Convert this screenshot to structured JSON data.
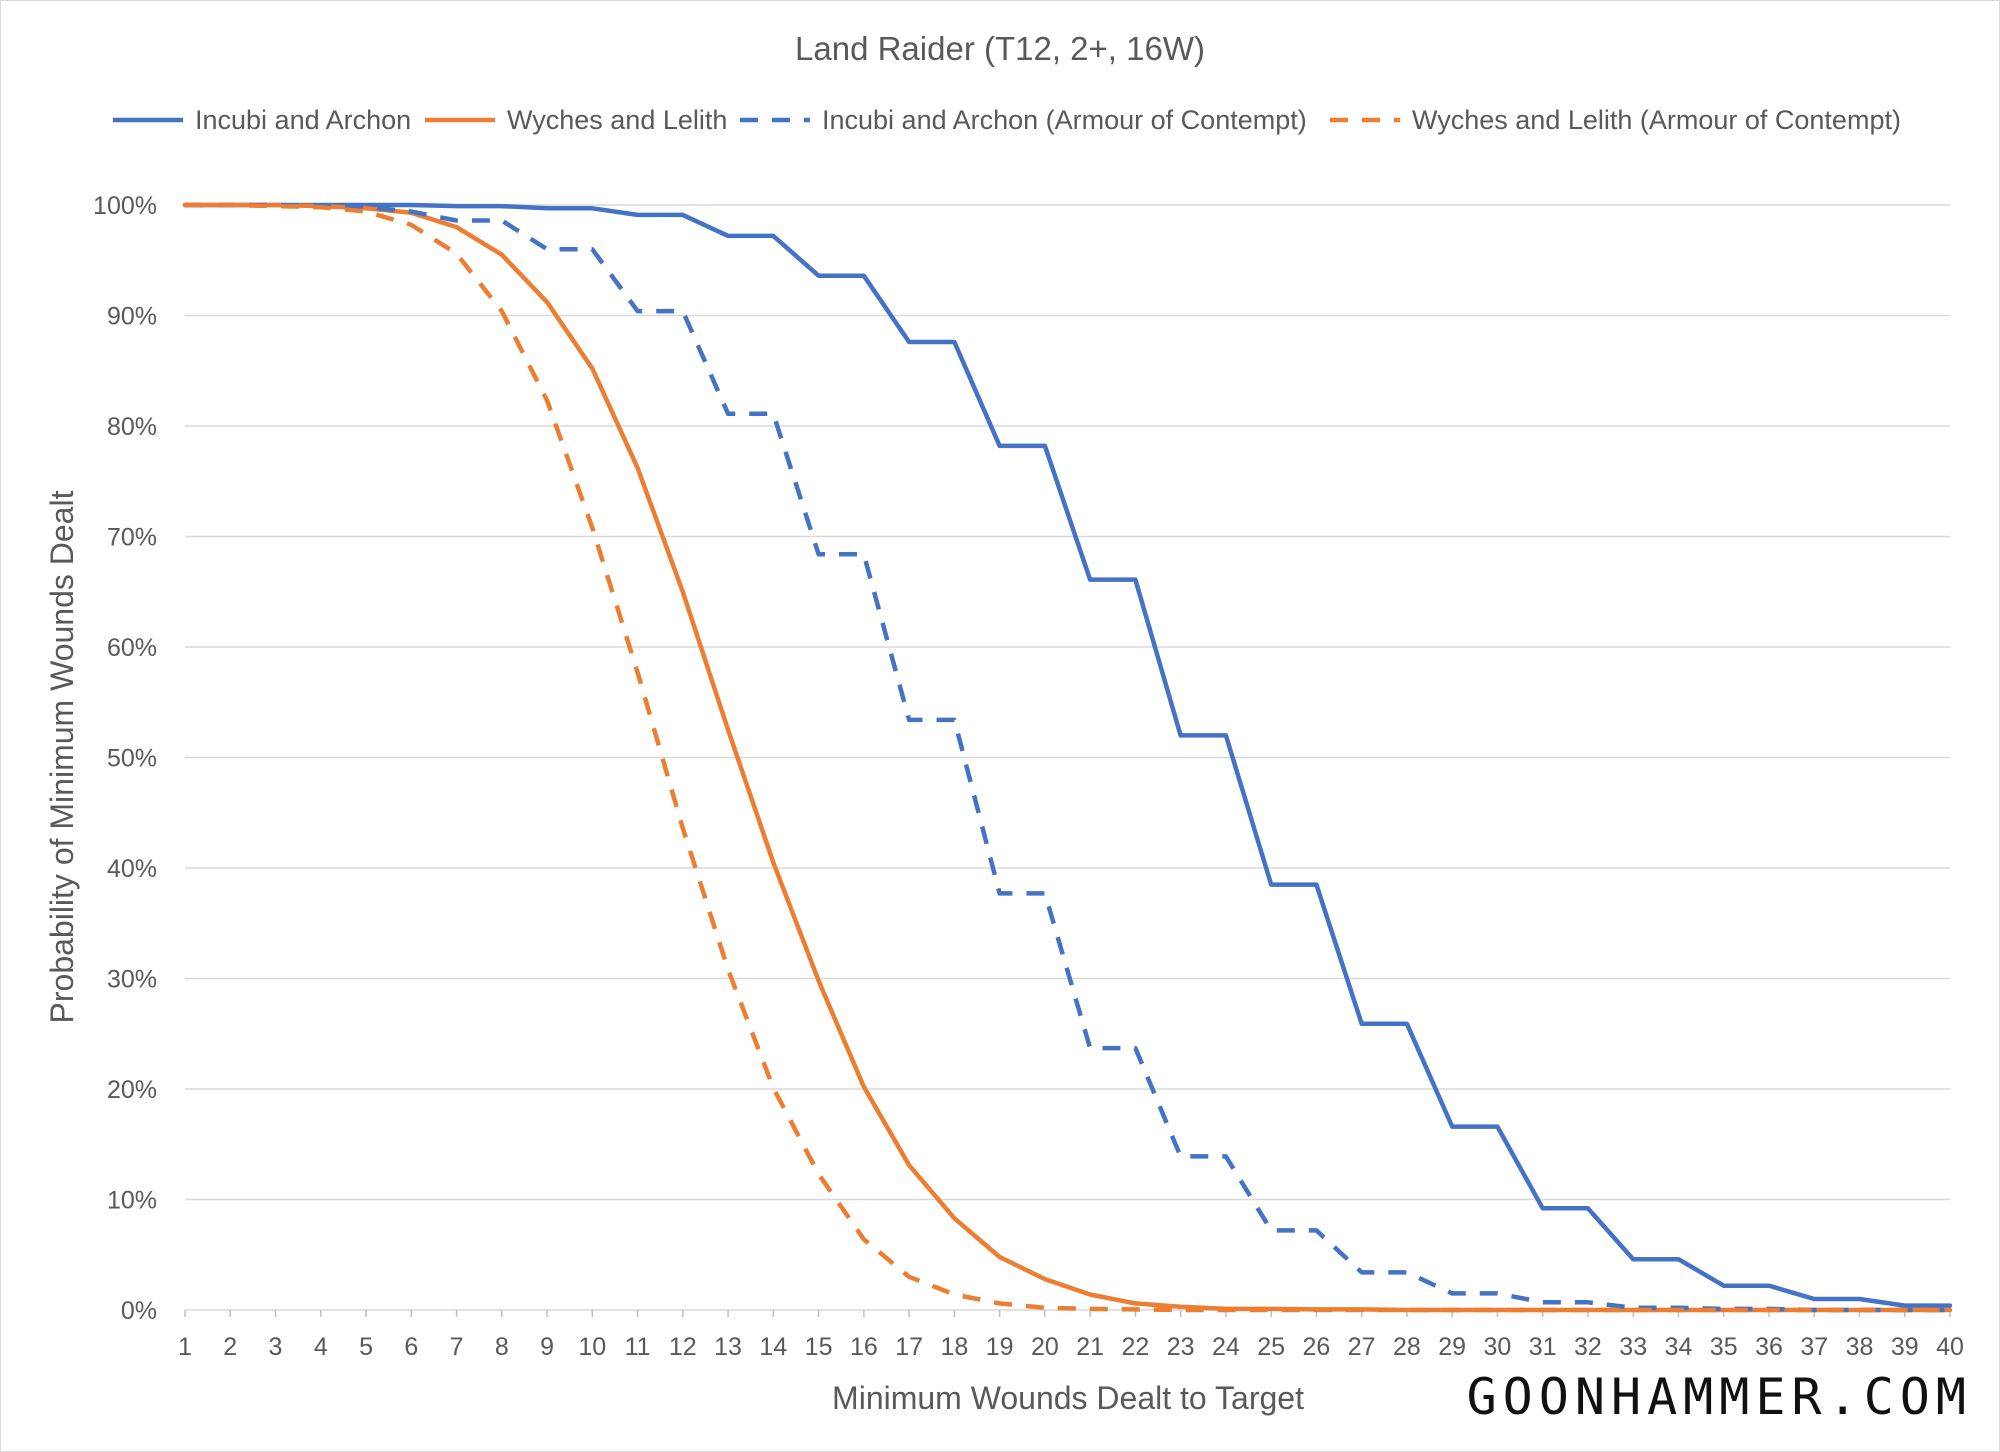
{
  "chart_data": {
    "type": "line",
    "title": "Land Raider (T12, 2+, 16W)",
    "xlabel": "Minimum Wounds Dealt to Target",
    "ylabel": "Probability of Minimum Wounds Dealt",
    "x": [
      1,
      2,
      3,
      4,
      5,
      6,
      7,
      8,
      9,
      10,
      11,
      12,
      13,
      14,
      15,
      16,
      17,
      18,
      19,
      20,
      21,
      22,
      23,
      24,
      25,
      26,
      27,
      28,
      29,
      30,
      31,
      32,
      33,
      34,
      35,
      36,
      37,
      38,
      39,
      40
    ],
    "xlim": [
      1,
      40
    ],
    "ylim": [
      0,
      100
    ],
    "y_ticks": [
      "0%",
      "10%",
      "20%",
      "30%",
      "40%",
      "50%",
      "60%",
      "70%",
      "80%",
      "90%",
      "100%"
    ],
    "x_ticks": [
      "1",
      "2",
      "3",
      "4",
      "5",
      "6",
      "7",
      "8",
      "9",
      "10",
      "11",
      "12",
      "13",
      "14",
      "15",
      "16",
      "17",
      "18",
      "19",
      "20",
      "21",
      "22",
      "23",
      "24",
      "25",
      "26",
      "27",
      "28",
      "29",
      "30",
      "31",
      "32",
      "33",
      "34",
      "35",
      "36",
      "37",
      "38",
      "39",
      "40"
    ],
    "grid": "horizontal",
    "legend_position": "top",
    "series": [
      {
        "name": "Incubi and Archon",
        "color": "#4472c4",
        "style": "solid",
        "values": [
          100,
          100,
          100,
          100,
          100,
          100,
          99.9,
          99.9,
          99.7,
          99.7,
          99.1,
          99.1,
          97.2,
          97.2,
          93.6,
          93.6,
          87.6,
          87.6,
          78.2,
          78.2,
          66.1,
          66.1,
          52.0,
          52.0,
          38.5,
          38.5,
          25.9,
          25.9,
          16.6,
          16.6,
          9.2,
          9.2,
          4.6,
          4.6,
          2.2,
          2.2,
          1.0,
          1.0,
          0.4,
          0.4
        ]
      },
      {
        "name": "Wyches and Lelith",
        "color": "#ed7d31",
        "style": "solid",
        "values": [
          100,
          100,
          100,
          99.9,
          99.7,
          99.3,
          98.0,
          95.5,
          91.2,
          85.2,
          76.2,
          65.0,
          52.5,
          40.5,
          29.8,
          20.2,
          13.1,
          8.3,
          4.8,
          2.8,
          1.4,
          0.6,
          0.3,
          0.1,
          0.1,
          0.05,
          0.05,
          0,
          0,
          0,
          0,
          0,
          0,
          0,
          0,
          0,
          0,
          0,
          0,
          0
        ]
      },
      {
        "name": "Incubi and Archon (Armour of Contempt)",
        "color": "#4472c4",
        "style": "dashed",
        "values": [
          100,
          100,
          100,
          99.9,
          99.8,
          99.4,
          98.6,
          98.6,
          96.0,
          96.0,
          90.4,
          90.4,
          81.1,
          81.1,
          68.4,
          68.4,
          53.4,
          53.4,
          37.7,
          37.7,
          23.7,
          23.7,
          13.9,
          13.9,
          7.2,
          7.2,
          3.4,
          3.4,
          1.5,
          1.5,
          0.7,
          0.7,
          0.2,
          0.2,
          0.1,
          0.1,
          0,
          0,
          0,
          0
        ]
      },
      {
        "name": "Wyches and Lelith (Armour of Contempt)",
        "color": "#ed7d31",
        "style": "dashed",
        "values": [
          100,
          100,
          99.9,
          99.8,
          99.4,
          98.2,
          95.6,
          90.4,
          82.3,
          70.8,
          57.7,
          43.6,
          30.8,
          20.1,
          12.3,
          6.4,
          3.0,
          1.4,
          0.6,
          0.2,
          0.1,
          0.05,
          0,
          0,
          0,
          0,
          0,
          0,
          0,
          0,
          0,
          0,
          0,
          0,
          0,
          0,
          0,
          0,
          0,
          0
        ]
      }
    ]
  },
  "brand": "GOONHAMMER.COM"
}
